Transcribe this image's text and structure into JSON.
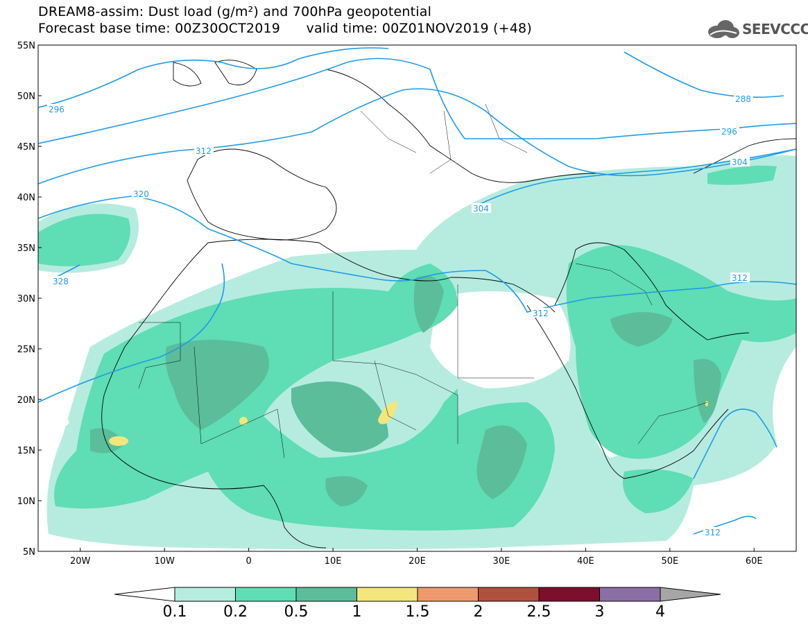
{
  "title": {
    "line1": "DREAM8-assim: Dust load (g/m²) and 700hPa geopotential",
    "line2": "Forecast base time: 00Z30OCT2019      valid time: 00Z01NOV2019 (+48)"
  },
  "logo": {
    "text": "SEEVCCC",
    "icon": "cloud-logo-icon"
  },
  "map": {
    "lon_range": [
      -25,
      65
    ],
    "lat_range": [
      5,
      55
    ],
    "lat_ticks": [
      "55N",
      "50N",
      "45N",
      "40N",
      "35N",
      "30N",
      "25N",
      "20N",
      "15N",
      "10N",
      "5N"
    ],
    "lon_ticks": [
      "20W",
      "10W",
      "0",
      "10E",
      "20E",
      "30E",
      "40E",
      "50E",
      "60E"
    ],
    "contour_labels": [
      "296",
      "312",
      "320",
      "328",
      "288",
      "296",
      "304",
      "304",
      "312",
      "312",
      "312"
    ]
  },
  "colorbar": {
    "ticks": [
      "0.1",
      "0.2",
      "0.5",
      "1",
      "1.5",
      "2",
      "2.5",
      "3",
      "4"
    ],
    "colors": [
      "#ffffff",
      "#b6ecdf",
      "#5fddb4",
      "#5bbd9a",
      "#f3e67d",
      "#ec9a6e",
      "#b0513f",
      "#7d0f2c",
      "#8a6ea4",
      "#a6a6a6"
    ]
  }
}
